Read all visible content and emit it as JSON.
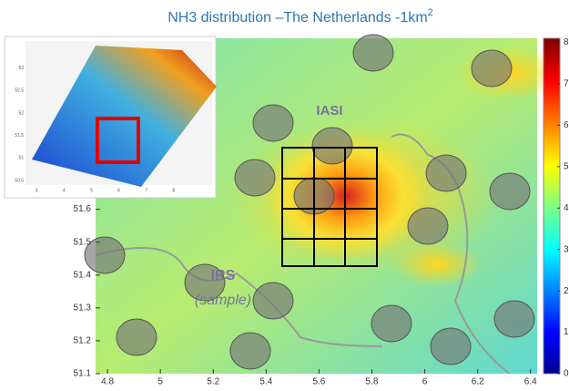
{
  "title": {
    "text": "NH3 distribution –The Netherlands -1km",
    "superscript": "2"
  },
  "map": {
    "xlim": [
      4.755,
      6.425
    ],
    "ylim": [
      51.1,
      52.12
    ],
    "xticks": [
      4.8,
      5,
      5.2,
      5.4,
      5.6,
      5.8,
      6,
      6.2,
      6.4
    ],
    "yticks": [
      51.1,
      51.2,
      51.3,
      51.4,
      51.5,
      51.6
    ]
  },
  "colorbar": {
    "lim": [
      0,
      8.1
    ],
    "ticks": [
      0,
      1,
      2,
      3,
      4,
      5,
      6,
      7,
      8
    ]
  },
  "inset": {
    "xlim": [
      2.6,
      9.4
    ],
    "ylim": [
      50.4,
      53.6
    ],
    "xticks": [
      3,
      4,
      5,
      6,
      7,
      8
    ],
    "yticks": [
      50.5,
      51,
      51.5,
      52,
      52.5,
      53
    ]
  },
  "labels": {
    "iasi": "IASI",
    "irs": "IRS",
    "sample": "(sample)"
  }
}
